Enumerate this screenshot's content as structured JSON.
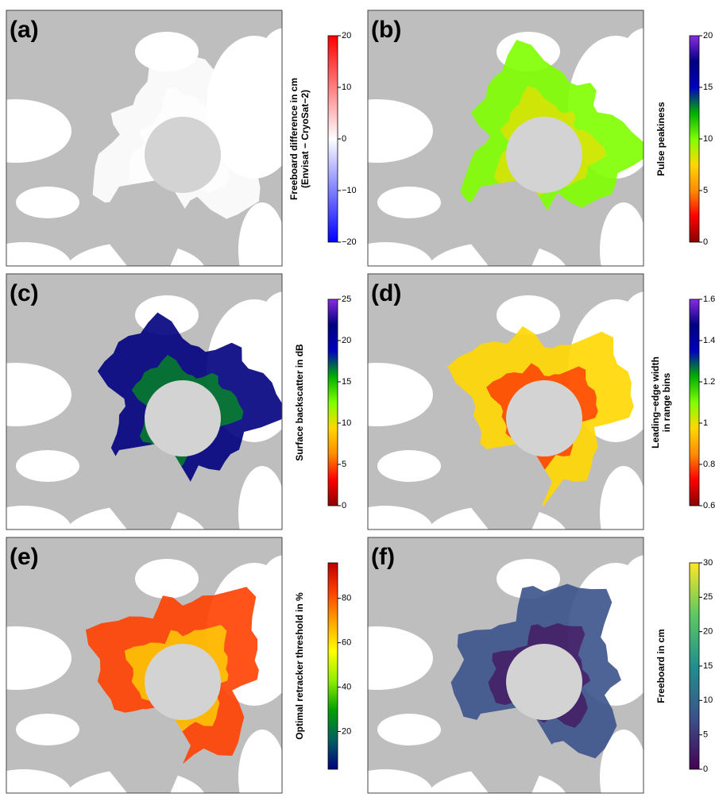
{
  "panels": [
    {
      "label": "(a)",
      "colorbar_label": [
        "Freeboard difference in cm",
        "(Envisat − CryoSat−2)"
      ],
      "clim": [
        -20,
        20
      ],
      "ticks": [
        {
          "value": -20,
          "label": "−20"
        },
        {
          "value": -10,
          "label": "−10"
        },
        0,
        10,
        20
      ],
      "colormap": [
        "#0000ff",
        "#ffffff",
        "#ff0000"
      ]
    },
    {
      "label": "(b)",
      "colorbar_label": [
        "Pulse peakiness"
      ],
      "clim": [
        0,
        20
      ],
      "ticks": [
        0,
        5,
        10,
        15,
        20
      ],
      "colormap": [
        "#8b0000",
        "#ff0000",
        "#ff8c00",
        "#ffd700",
        "#7fff00",
        "#00b000",
        "#0000c0",
        "#000080",
        "#8a2be2"
      ]
    },
    {
      "label": "(c)",
      "colorbar_label": [
        "Surface backscatter in dB"
      ],
      "clim": [
        0,
        25
      ],
      "ticks": [
        0,
        5,
        10,
        15,
        20,
        25
      ],
      "colormap": [
        "#8b0000",
        "#ff0000",
        "#ff8c00",
        "#ffd700",
        "#7fff00",
        "#00b000",
        "#0000c0",
        "#000080",
        "#8a2be2"
      ]
    },
    {
      "label": "(d)",
      "colorbar_label": [
        "Leading−edge width",
        "in range bins"
      ],
      "clim": [
        0.6,
        1.6
      ],
      "ticks": [
        0.6,
        0.8,
        1.0,
        1.2,
        1.4,
        1.6
      ],
      "colormap": [
        "#8b0000",
        "#ff0000",
        "#ff8c00",
        "#ffd700",
        "#7fff00",
        "#00b000",
        "#0000c0",
        "#000080",
        "#8a2be2"
      ]
    },
    {
      "label": "(e)",
      "colorbar_label": [
        "Optimal retracker threshold in %"
      ],
      "clim": [
        3,
        96
      ],
      "ticks": [
        20,
        40,
        60,
        80
      ],
      "colormap": [
        "#000080",
        "#006060",
        "#00a000",
        "#90ee00",
        "#ffff00",
        "#ffa500",
        "#ff4000",
        "#c00000"
      ]
    },
    {
      "label": "(f)",
      "colorbar_label": [
        "Freeboard in cm"
      ],
      "clim": [
        0,
        30
      ],
      "ticks": [
        0,
        5,
        10,
        15,
        20,
        25,
        30
      ],
      "colormap": [
        "#440154",
        "#3b528b",
        "#21908c",
        "#5dc863",
        "#fde725"
      ]
    }
  ]
}
